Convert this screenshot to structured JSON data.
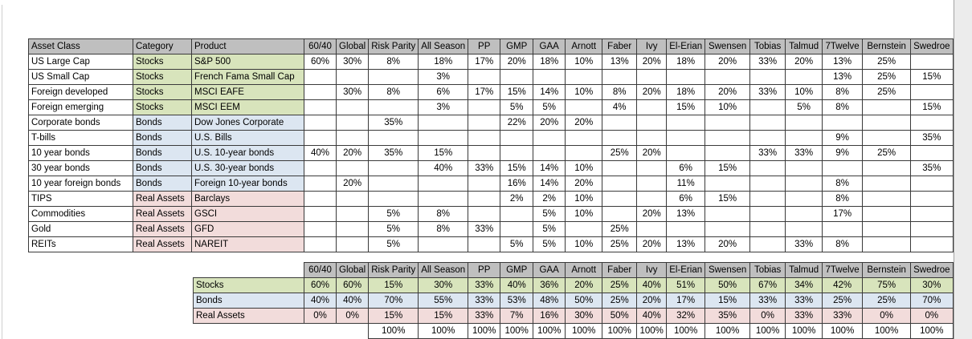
{
  "colors": {
    "header_bg": "#bfbfbf",
    "stocks_bg": "#d8e4bc",
    "bonds_bg": "#dce6f1",
    "real_assets_bg": "#f2dcdb",
    "grid_border": "#3a3a3a"
  },
  "portfolio_columns": [
    "60/40",
    "Global",
    "Risk Parity",
    "All Season",
    "PP",
    "GMP",
    "GAA",
    "Arnott",
    "Faber",
    "Ivy",
    "El-Erian",
    "Swensen",
    "Tobias",
    "Talmud",
    "7Twelve",
    "Bernstein",
    "Swedroe"
  ],
  "allocation_table": {
    "label_headers": [
      "Asset Class",
      "Category",
      "Product"
    ],
    "rows": [
      {
        "asset_class": "US Large Cap",
        "category": "Stocks",
        "product": "S&P 500",
        "values": [
          "60%",
          "30%",
          "8%",
          "18%",
          "17%",
          "20%",
          "18%",
          "10%",
          "13%",
          "20%",
          "18%",
          "20%",
          "33%",
          "20%",
          "13%",
          "25%",
          ""
        ]
      },
      {
        "asset_class": "US Small Cap",
        "category": "Stocks",
        "product": "French Fama Small Cap",
        "values": [
          "",
          "",
          "",
          "3%",
          "",
          "",
          "",
          "",
          "",
          "",
          "",
          "",
          "",
          "",
          "13%",
          "25%",
          "15%"
        ]
      },
      {
        "asset_class": "Foreign developed",
        "category": "Stocks",
        "product": "MSCI EAFE",
        "values": [
          "",
          "30%",
          "8%",
          "6%",
          "17%",
          "15%",
          "14%",
          "10%",
          "8%",
          "20%",
          "18%",
          "20%",
          "33%",
          "10%",
          "8%",
          "25%",
          ""
        ]
      },
      {
        "asset_class": "Foreign emerging",
        "category": "Stocks",
        "product": "MSCI EEM",
        "values": [
          "",
          "",
          "",
          "3%",
          "",
          "5%",
          "5%",
          "",
          "4%",
          "",
          "15%",
          "10%",
          "",
          "5%",
          "8%",
          "",
          "15%"
        ]
      },
      {
        "asset_class": "Corporate bonds",
        "category": "Bonds",
        "product": "Dow Jones Corporate",
        "values": [
          "",
          "",
          "35%",
          "",
          "",
          "22%",
          "20%",
          "20%",
          "",
          "",
          "",
          "",
          "",
          "",
          "",
          "",
          ""
        ]
      },
      {
        "asset_class": "T-bills",
        "category": "Bonds",
        "product": "U.S. Bills",
        "values": [
          "",
          "",
          "",
          "",
          "",
          "",
          "",
          "",
          "",
          "",
          "",
          "",
          "",
          "",
          "9%",
          "",
          "35%"
        ]
      },
      {
        "asset_class": "10 year bonds",
        "category": "Bonds",
        "product": "U.S. 10-year bonds",
        "values": [
          "40%",
          "20%",
          "35%",
          "15%",
          "",
          "",
          "",
          "",
          "25%",
          "20%",
          "",
          "",
          "33%",
          "33%",
          "9%",
          "25%",
          ""
        ]
      },
      {
        "asset_class": "30 year bonds",
        "category": "Bonds",
        "product": "U.S. 30-year bonds",
        "values": [
          "",
          "",
          "",
          "40%",
          "33%",
          "15%",
          "14%",
          "10%",
          "",
          "",
          "6%",
          "15%",
          "",
          "",
          "",
          "",
          "35%"
        ]
      },
      {
        "asset_class": "10 year foreign bonds",
        "category": "Bonds",
        "product": "Foreign 10-year bonds",
        "values": [
          "",
          "20%",
          "",
          "",
          "",
          "16%",
          "14%",
          "20%",
          "",
          "",
          "11%",
          "",
          "",
          "",
          "8%",
          "",
          ""
        ]
      },
      {
        "asset_class": "TIPS",
        "category": "Real Assets",
        "product": "Barclays",
        "values": [
          "",
          "",
          "",
          "",
          "",
          "2%",
          "2%",
          "10%",
          "",
          "",
          "6%",
          "15%",
          "",
          "",
          "8%",
          "",
          ""
        ]
      },
      {
        "asset_class": "Commodities",
        "category": "Real Assets",
        "product": "GSCI",
        "values": [
          "",
          "",
          "5%",
          "8%",
          "",
          "",
          "5%",
          "10%",
          "",
          "20%",
          "13%",
          "",
          "",
          "",
          "17%",
          "",
          ""
        ]
      },
      {
        "asset_class": "Gold",
        "category": "Real Assets",
        "product": "GFD",
        "values": [
          "",
          "",
          "5%",
          "8%",
          "33%",
          "",
          "5%",
          "",
          "25%",
          "",
          "",
          "",
          "",
          "",
          "",
          "",
          ""
        ]
      },
      {
        "asset_class": "REITs",
        "category": "Real Assets",
        "product": "NAREIT",
        "values": [
          "",
          "",
          "5%",
          "",
          "",
          "5%",
          "5%",
          "10%",
          "25%",
          "20%",
          "13%",
          "20%",
          "",
          "33%",
          "8%",
          "",
          ""
        ]
      }
    ]
  },
  "summary_table": {
    "rows": [
      {
        "label": "Stocks",
        "category": "Stocks",
        "values": [
          "60%",
          "60%",
          "15%",
          "30%",
          "33%",
          "40%",
          "36%",
          "20%",
          "25%",
          "40%",
          "51%",
          "50%",
          "67%",
          "34%",
          "42%",
          "75%",
          "30%"
        ]
      },
      {
        "label": "Bonds",
        "category": "Bonds",
        "values": [
          "40%",
          "40%",
          "70%",
          "55%",
          "33%",
          "53%",
          "48%",
          "50%",
          "25%",
          "20%",
          "17%",
          "15%",
          "33%",
          "33%",
          "25%",
          "25%",
          "70%"
        ]
      },
      {
        "label": "Real Assets",
        "category": "Real Assets",
        "values": [
          "0%",
          "0%",
          "15%",
          "15%",
          "33%",
          "7%",
          "16%",
          "30%",
          "50%",
          "40%",
          "32%",
          "35%",
          "0%",
          "33%",
          "33%",
          "0%",
          "0%"
        ]
      }
    ],
    "total_row": {
      "values": [
        "",
        "",
        "100%",
        "100%",
        "100%",
        "100%",
        "100%",
        "100%",
        "100%",
        "100%",
        "100%",
        "100%",
        "100%",
        "100%",
        "100%",
        "100%",
        "100%"
      ]
    }
  }
}
